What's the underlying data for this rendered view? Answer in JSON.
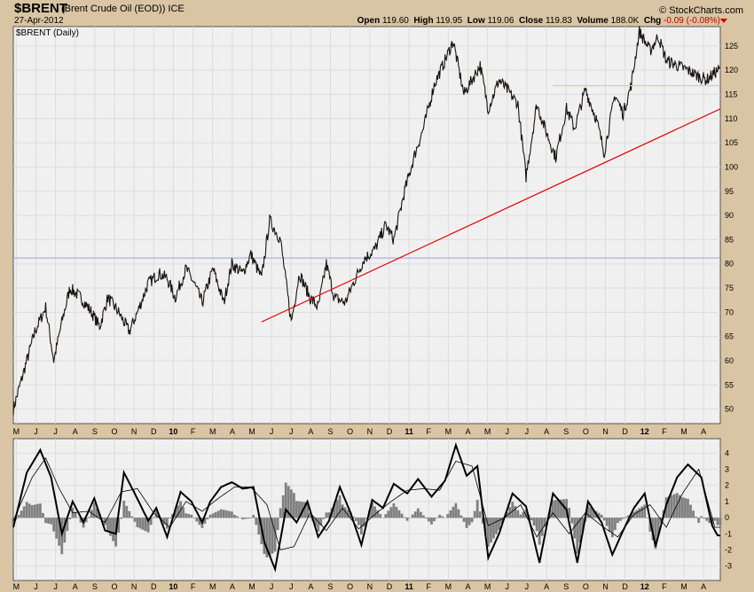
{
  "header": {
    "symbol": "$BRENT",
    "description": "(Brent Crude Oil (EOD)) ICE",
    "date": "27-Apr-2012",
    "brand": "© StockCharts.com",
    "open_label": "Open",
    "open": "119.60",
    "high_label": "High",
    "high": "119.95",
    "low_label": "Low",
    "low": "119.06",
    "close_label": "Close",
    "close": "119.83",
    "volume_label": "Volume",
    "volume": "188.0K",
    "chg_label": "Chg",
    "chg": "-0.09 (-0.08%)",
    "chg_color": "#c00000"
  },
  "chart_data": [
    {
      "type": "line",
      "title": "$BRENT (Daily)",
      "series": [
        {
          "x": [
            0,
            4,
            8,
            12,
            15,
            18,
            21,
            25,
            29,
            32,
            35,
            39,
            43,
            46,
            50,
            54,
            57,
            60,
            64,
            67,
            70,
            74,
            78,
            81,
            85,
            88,
            92,
            95,
            99,
            103,
            106,
            110,
            113,
            116,
            119,
            123,
            126,
            130,
            134,
            138,
            141,
            145,
            149,
            152,
            156,
            160,
            163,
            167,
            170,
            173,
            176,
            180,
            183,
            187,
            190,
            194,
            197,
            201,
            205,
            208,
            212,
            216,
            219,
            223,
            226,
            229,
            232,
            236,
            239,
            242,
            246,
            250,
            253,
            257,
            261
          ],
          "values": [
            50,
            58,
            66,
            71,
            60,
            68,
            75,
            73,
            70,
            67,
            73,
            70,
            66,
            70,
            76,
            78,
            77,
            73,
            79,
            76,
            72,
            79,
            72,
            80,
            78,
            82,
            77,
            89,
            85,
            68,
            78,
            73,
            71,
            80,
            73,
            72,
            76,
            81,
            83,
            88,
            85,
            95,
            103,
            108,
            117,
            122,
            126,
            115,
            118,
            121,
            112,
            118,
            116,
            113,
            98,
            113,
            108,
            102,
            112,
            108,
            116,
            110,
            103,
            115,
            111,
            117,
            128,
            124,
            127,
            122,
            121,
            120,
            119,
            118,
            120
          ]
        }
      ],
      "xlim": [
        0,
        262
      ],
      "ylim": [
        47,
        129
      ],
      "x_tick_labels": [
        "M",
        "J",
        "J",
        "A",
        "S",
        "O",
        "N",
        "D",
        "10",
        "F",
        "M",
        "A",
        "M",
        "J",
        "J",
        "A",
        "S",
        "O",
        "N",
        "D",
        "11",
        "F",
        "M",
        "A",
        "M",
        "J",
        "J",
        "A",
        "S",
        "O",
        "N",
        "D",
        "12",
        "F",
        "M",
        "A"
      ],
      "y_tick_labels": [
        "125",
        "120",
        "115",
        "110",
        "105",
        "100",
        "95",
        "90",
        "85",
        "80",
        "75",
        "70",
        "65",
        "60",
        "55",
        "50"
      ],
      "annotations": [
        {
          "type": "trendline",
          "color": "#e00000",
          "from": [
            92,
            68
          ],
          "to": [
            262,
            112
          ]
        },
        {
          "type": "horizontal",
          "color": "#cfe06a",
          "from": [
            200,
            116.8
          ],
          "to": [
            262,
            116.8
          ]
        },
        {
          "type": "horizontal",
          "color": "#a0a0e8",
          "value": 81.2
        }
      ],
      "grid": true,
      "colors": {
        "price": "#1a1410",
        "panel_bg": "#f0f0f0",
        "grid": "#dcdcdc"
      }
    },
    {
      "type": "line",
      "series": [
        {
          "name": "macd",
          "x": [
            0,
            5,
            10,
            14,
            18,
            22,
            26,
            30,
            34,
            38,
            41,
            45,
            50,
            53,
            57,
            62,
            66,
            70,
            73,
            77,
            81,
            85,
            89,
            93,
            97,
            101,
            105,
            109,
            113,
            117,
            121,
            125,
            129,
            133,
            137,
            141,
            146,
            150,
            155,
            160,
            164,
            168,
            172,
            176,
            180,
            185,
            190,
            195,
            200,
            205,
            209,
            213,
            218,
            222,
            226,
            230,
            234,
            238,
            242,
            246,
            250,
            255,
            259,
            261
          ],
          "values": [
            -0.6,
            2.8,
            4.2,
            2.5,
            -1.0,
            1.0,
            -0.3,
            1.2,
            -0.8,
            -1.0,
            2.8,
            1.5,
            -0.2,
            0.6,
            -1.2,
            1.6,
            1.0,
            -0.3,
            1.0,
            1.9,
            2.2,
            1.8,
            1.9,
            -1.5,
            -3.2,
            0.5,
            -0.3,
            1.0,
            -1.2,
            -0.2,
            1.9,
            0.3,
            -1.7,
            1.1,
            0.6,
            2.1,
            1.5,
            2.4,
            1.3,
            2.3,
            4.5,
            2.6,
            3.2,
            -2.5,
            -1.0,
            1.5,
            0.7,
            -2.8,
            1.5,
            0.5,
            -2.8,
            1.0,
            -0.3,
            -2.3,
            -0.8,
            0.6,
            1.5,
            -1.8,
            0.8,
            2.5,
            3.3,
            2.5,
            -0.5,
            -1.1
          ]
        },
        {
          "name": "signal",
          "x": [
            0,
            7,
            12,
            17,
            22,
            28,
            34,
            40,
            46,
            52,
            58,
            64,
            70,
            76,
            82,
            88,
            94,
            99,
            104,
            110,
            116,
            122,
            128,
            134,
            140,
            146,
            152,
            158,
            164,
            170,
            176,
            182,
            188,
            194,
            200,
            206,
            212,
            218,
            224,
            230,
            236,
            242,
            248,
            254,
            260
          ],
          "values": [
            -0.2,
            2.5,
            3.7,
            1.8,
            0.3,
            0.4,
            -0.3,
            1.6,
            1.8,
            0.3,
            -0.6,
            1.0,
            0.4,
            1.2,
            1.9,
            1.9,
            0.8,
            -2.0,
            -1.8,
            0.3,
            -0.8,
            0.6,
            -0.7,
            0.2,
            1.0,
            1.7,
            1.8,
            1.7,
            3.5,
            3.2,
            -0.5,
            0.0,
            0.8,
            -1.2,
            0.3,
            -1.0,
            0.3,
            -0.5,
            -1.2,
            0.2,
            0.8,
            -0.6,
            1.5,
            3.0,
            -0.6
          ]
        }
      ],
      "histogram_color": "#808080",
      "xlim": [
        0,
        262
      ],
      "ylim": [
        -3.9,
        4.9
      ],
      "x_tick_labels": [
        "M",
        "J",
        "J",
        "A",
        "S",
        "O",
        "N",
        "D",
        "10",
        "F",
        "M",
        "A",
        "M",
        "J",
        "J",
        "A",
        "S",
        "O",
        "N",
        "D",
        "11",
        "F",
        "M",
        "A",
        "M",
        "J",
        "J",
        "A",
        "S",
        "O",
        "N",
        "D",
        "12",
        "F",
        "M",
        "A"
      ],
      "y_tick_labels": [
        "4",
        "3",
        "2",
        "1",
        "0",
        "-1",
        "-2",
        "-3"
      ]
    }
  ]
}
